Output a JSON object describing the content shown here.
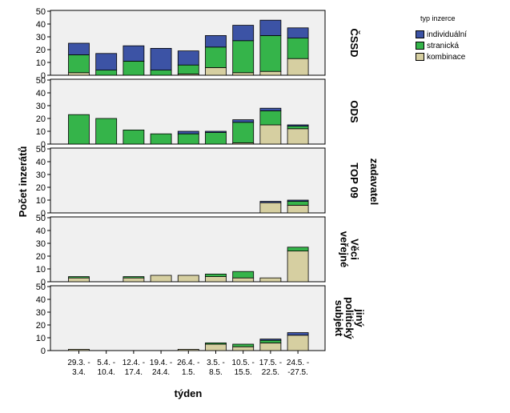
{
  "chart_data": {
    "type": "bar",
    "stacked": true,
    "ylabel": "Počet inzerátů",
    "xlabel": "týden",
    "facet_label": "zadavatel",
    "legend_title": "typ inzerce",
    "legend_position": "top-right",
    "ylim": [
      0,
      50
    ],
    "yticks": [
      0,
      10,
      20,
      30,
      40,
      50
    ],
    "categories": [
      [
        "29.3. -",
        "3.4."
      ],
      [
        "5.4. -",
        "10.4."
      ],
      [
        "12.4. -",
        "17.4."
      ],
      [
        "19.4. -",
        "24.4."
      ],
      [
        "26.4. -",
        "1.5."
      ],
      [
        "3.5. -",
        "8.5."
      ],
      [
        "10.5. -",
        "15.5."
      ],
      [
        "17.5. -",
        "22.5."
      ],
      [
        "24.5. -",
        "-27.5."
      ]
    ],
    "series_meta": [
      {
        "name": "individuální",
        "color": "#3c53a5"
      },
      {
        "name": "stranická",
        "color": "#35b44a"
      },
      {
        "name": "kombinace",
        "color": "#d6cfa1"
      }
    ],
    "panels": [
      {
        "label": [
          "ČSSD"
        ],
        "series": [
          {
            "name": "kombinace",
            "values": [
              2,
              0,
              0,
              0,
              1,
              6,
              2,
              3,
              13
            ]
          },
          {
            "name": "stranická",
            "values": [
              14,
              4,
              11,
              4,
              7,
              16,
              25,
              28,
              16
            ]
          },
          {
            "name": "individuální",
            "values": [
              9,
              13,
              12,
              17,
              11,
              9,
              12,
              12,
              8
            ]
          }
        ]
      },
      {
        "label": [
          "ODS"
        ],
        "series": [
          {
            "name": "kombinace",
            "values": [
              0,
              0,
              0,
              0,
              0,
              0,
              1,
              15,
              12
            ]
          },
          {
            "name": "stranická",
            "values": [
              23,
              20,
              11,
              8,
              8,
              9,
              16,
              11,
              2
            ]
          },
          {
            "name": "individuální",
            "values": [
              0,
              0,
              0,
              0,
              2,
              1,
              2,
              2,
              1
            ]
          }
        ]
      },
      {
        "label": [
          "TOP 09"
        ],
        "series": [
          {
            "name": "kombinace",
            "values": [
              0,
              0,
              0,
              0,
              0,
              0,
              0,
              8,
              6
            ]
          },
          {
            "name": "stranická",
            "values": [
              0,
              0,
              0,
              0,
              0,
              0,
              0,
              0,
              3
            ]
          },
          {
            "name": "individuální",
            "values": [
              0,
              0,
              0,
              0,
              0,
              0,
              0,
              1,
              1
            ]
          }
        ]
      },
      {
        "label": [
          "Věci",
          "veřejné"
        ],
        "series": [
          {
            "name": "kombinace",
            "values": [
              3,
              0,
              3,
              5,
              5,
              4,
              3,
              3,
              24
            ]
          },
          {
            "name": "stranická",
            "values": [
              1,
              0,
              1,
              0,
              0,
              2,
              5,
              0,
              3
            ]
          },
          {
            "name": "individuální",
            "values": [
              0,
              0,
              0,
              0,
              0,
              0,
              0,
              0,
              0
            ]
          }
        ]
      },
      {
        "label": [
          "jiný",
          "politický",
          "subjekt"
        ],
        "series": [
          {
            "name": "kombinace",
            "values": [
              1,
              0,
              0,
              0,
              1,
              5,
              3,
              6,
              12
            ]
          },
          {
            "name": "stranická",
            "values": [
              0,
              0,
              0,
              0,
              0,
              1,
              2,
              2,
              0
            ]
          },
          {
            "name": "individuální",
            "values": [
              0,
              0,
              0,
              0,
              0,
              0,
              0,
              1,
              2
            ]
          }
        ]
      }
    ]
  }
}
